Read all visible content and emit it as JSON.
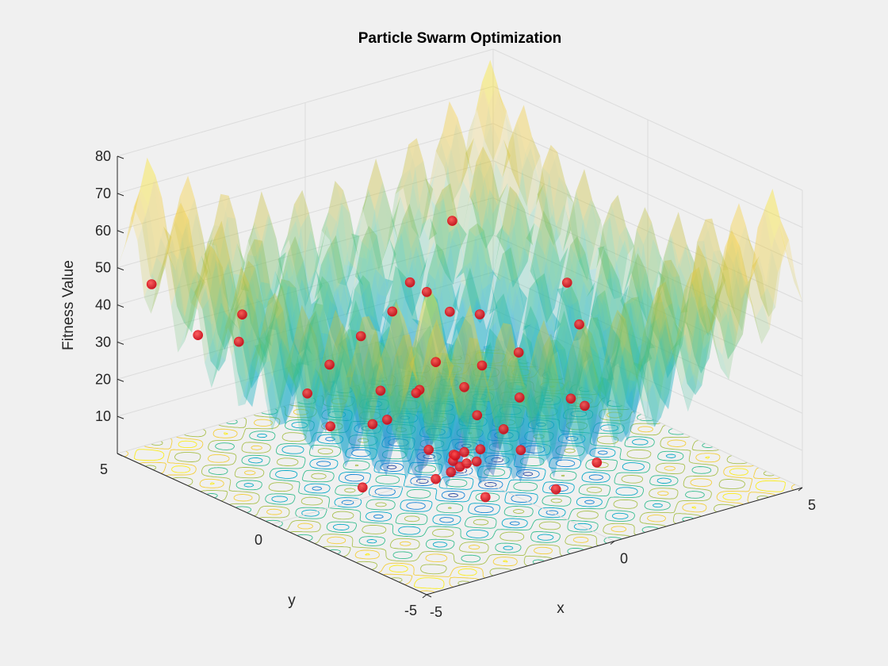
{
  "chart_data": {
    "type": "scatter",
    "subtype": "3d-surface-with-contour-and-scatter",
    "title": "Particle Swarm Optimization",
    "xlabel": "x",
    "ylabel": "y",
    "zlabel": "Fitness Value",
    "xlim": [
      -5,
      5
    ],
    "ylim": [
      -5,
      5
    ],
    "zlim": [
      0,
      80
    ],
    "xticks": [
      "-5",
      "0",
      "5"
    ],
    "yticks": [
      "-5",
      "0",
      "5"
    ],
    "zticks": [
      "10",
      "20",
      "30",
      "40",
      "50",
      "60",
      "70",
      "80"
    ],
    "grid": true,
    "surface": {
      "function": "rastrigin",
      "colormap": "parula",
      "opacity": 0.35
    },
    "particle_color": "#e8101a",
    "series": [
      {
        "points": [
          {
            "x": 0.0,
            "y": 0.0,
            "z": 1.0
          },
          {
            "x": 0.1,
            "y": -0.1,
            "z": 2.0
          },
          {
            "x": -0.1,
            "y": 0.1,
            "z": 2.5
          },
          {
            "x": 0.2,
            "y": 0.1,
            "z": 4.0
          },
          {
            "x": 0.0,
            "y": 0.2,
            "z": 3.5
          },
          {
            "x": -0.2,
            "y": -0.1,
            "z": 5.0
          },
          {
            "x": 0.3,
            "y": -0.3,
            "z": 6.0
          },
          {
            "x": -0.5,
            "y": 0.4,
            "z": 5.5
          },
          {
            "x": 0.8,
            "y": -1.0,
            "z": 7.0
          },
          {
            "x": 1.2,
            "y": 0.9,
            "z": 8.0
          },
          {
            "x": -1.3,
            "y": -0.8,
            "z": 4.5
          },
          {
            "x": 1.0,
            "y": -0.2,
            "z": 9.0
          },
          {
            "x": -0.7,
            "y": 1.5,
            "z": 10.0
          },
          {
            "x": 1.6,
            "y": 1.8,
            "z": 11.0
          },
          {
            "x": 0.4,
            "y": 1.9,
            "z": 12.5
          },
          {
            "x": -1.5,
            "y": 1.0,
            "z": 13.0
          },
          {
            "x": -0.3,
            "y": 2.2,
            "z": 14.0
          },
          {
            "x": 2.0,
            "y": 0.5,
            "z": 12.0
          },
          {
            "x": 1.5,
            "y": 2.6,
            "z": 15.0
          },
          {
            "x": 2.5,
            "y": -1.0,
            "z": 14.0
          },
          {
            "x": -2.0,
            "y": 2.5,
            "z": 17.0
          },
          {
            "x": 2.8,
            "y": 1.5,
            "z": 18.0
          },
          {
            "x": -1.0,
            "y": 3.0,
            "z": 20.0
          },
          {
            "x": 3.0,
            "y": 3.0,
            "z": 22.0
          },
          {
            "x": 0.0,
            "y": 3.2,
            "z": 24.0
          },
          {
            "x": 1.0,
            "y": 3.4,
            "z": 27.0
          },
          {
            "x": 2.0,
            "y": 3.5,
            "z": 29.0
          },
          {
            "x": 1.8,
            "y": 3.8,
            "z": 31.0
          },
          {
            "x": 2.2,
            "y": 3.0,
            "z": 25.0
          },
          {
            "x": -3.0,
            "y": 3.5,
            "z": 30.0
          },
          {
            "x": -2.5,
            "y": 4.0,
            "z": 34.0
          },
          {
            "x": 4.0,
            "y": 1.0,
            "z": 24.0
          },
          {
            "x": 4.5,
            "y": 2.0,
            "z": 30.0
          },
          {
            "x": 3.5,
            "y": 4.5,
            "z": 40.0
          },
          {
            "x": -4.5,
            "y": 3.0,
            "z": 38.0
          },
          {
            "x": -4.5,
            "y": 4.5,
            "z": 46.0
          },
          {
            "x": 0.5,
            "y": -2.5,
            "z": 3.0
          },
          {
            "x": -3.0,
            "y": -0.5,
            "z": 6.0
          },
          {
            "x": 2.0,
            "y": -2.0,
            "z": 4.0
          },
          {
            "x": -0.8,
            "y": -1.8,
            "z": 2.0
          },
          {
            "x": 3.2,
            "y": 0.3,
            "z": 9.0
          },
          {
            "x": 0.9,
            "y": 2.4,
            "z": 10.0
          },
          {
            "x": -1.8,
            "y": 2.0,
            "z": 9.5
          },
          {
            "x": 2.4,
            "y": 2.2,
            "z": 13.0
          },
          {
            "x": 0.2,
            "y": -0.3,
            "z": 3.0
          },
          {
            "x": -0.4,
            "y": -0.2,
            "z": 1.5
          }
        ]
      }
    ]
  }
}
